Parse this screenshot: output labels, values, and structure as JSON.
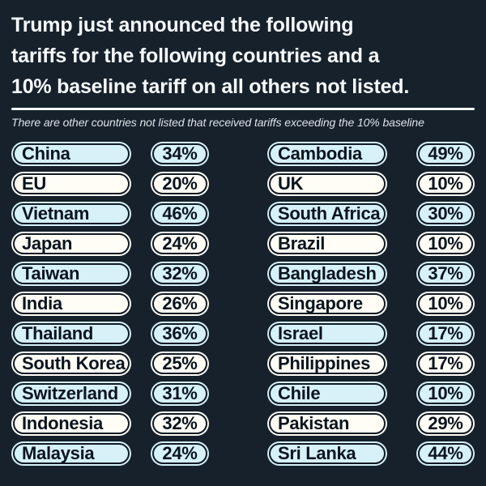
{
  "header": {
    "title_lines": [
      "Trump just announced the following",
      "tariffs for the following countries and a",
      "10% baseline tariff on all others not listed."
    ],
    "subtitle": "There are other countries not listed that received tariffs exceeding the 10% baseline"
  },
  "tariffs": {
    "left": [
      {
        "country": "China",
        "rate": "34%"
      },
      {
        "country": "EU",
        "rate": "20%"
      },
      {
        "country": "Vietnam",
        "rate": "46%"
      },
      {
        "country": "Japan",
        "rate": "24%"
      },
      {
        "country": "Taiwan",
        "rate": "32%"
      },
      {
        "country": "India",
        "rate": "26%"
      },
      {
        "country": "Thailand",
        "rate": "36%"
      },
      {
        "country": "South Korea",
        "rate": "25%"
      },
      {
        "country": "Switzerland",
        "rate": "31%"
      },
      {
        "country": "Indonesia",
        "rate": "32%"
      },
      {
        "country": "Malaysia",
        "rate": "24%"
      }
    ],
    "right": [
      {
        "country": "Cambodia",
        "rate": "49%"
      },
      {
        "country": "UK",
        "rate": "10%"
      },
      {
        "country": "South Africa",
        "rate": "30%"
      },
      {
        "country": "Brazil",
        "rate": "10%"
      },
      {
        "country": "Bangladesh",
        "rate": "37%"
      },
      {
        "country": "Singapore",
        "rate": "10%"
      },
      {
        "country": "Israel",
        "rate": "17%"
      },
      {
        "country": "Philippines",
        "rate": "17%"
      },
      {
        "country": "Chile",
        "rate": "10%"
      },
      {
        "country": "Pakistan",
        "rate": "29%"
      },
      {
        "country": "Sri Lanka",
        "rate": "44%"
      }
    ]
  },
  "colors": {
    "background": "#16212c",
    "title_text": "#f7fafc",
    "subtitle_text": "#dce3e9",
    "divider": "#f2f7fa",
    "pill_blue": "#d6f1f8",
    "pill_white": "#fffdf6",
    "pill_ring": "#101a24",
    "pill_text": "#0a141e"
  },
  "chart_data": {
    "type": "table",
    "title": "Trump just announced the following tariffs for the following countries and a 10% baseline tariff on all others not listed.",
    "note": "There are other countries not listed that received tariffs exceeding the 10% baseline",
    "columns": [
      "Country",
      "Tariff"
    ],
    "rows": [
      [
        "China",
        "34%"
      ],
      [
        "EU",
        "20%"
      ],
      [
        "Vietnam",
        "46%"
      ],
      [
        "Japan",
        "24%"
      ],
      [
        "Taiwan",
        "32%"
      ],
      [
        "India",
        "26%"
      ],
      [
        "Thailand",
        "36%"
      ],
      [
        "South Korea",
        "25%"
      ],
      [
        "Switzerland",
        "31%"
      ],
      [
        "Indonesia",
        "32%"
      ],
      [
        "Malaysia",
        "24%"
      ],
      [
        "Cambodia",
        "49%"
      ],
      [
        "UK",
        "10%"
      ],
      [
        "South Africa",
        "30%"
      ],
      [
        "Brazil",
        "10%"
      ],
      [
        "Bangladesh",
        "37%"
      ],
      [
        "Singapore",
        "10%"
      ],
      [
        "Israel",
        "17%"
      ],
      [
        "Philippines",
        "17%"
      ],
      [
        "Chile",
        "10%"
      ],
      [
        "Pakistan",
        "29%"
      ],
      [
        "Sri Lanka",
        "44%"
      ]
    ],
    "baseline_tariff": "10%"
  }
}
